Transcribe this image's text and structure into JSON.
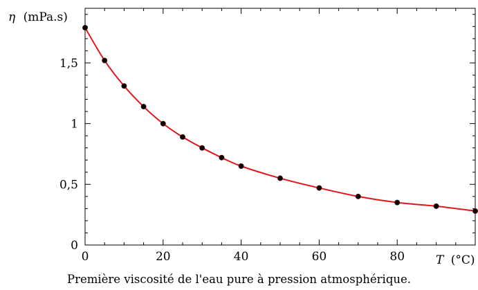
{
  "chart_data": {
    "type": "line",
    "title": "",
    "xlabel_symbol": "T",
    "xlabel_unit": "(°C)",
    "ylabel_symbol": "η",
    "ylabel_unit": "(mPa.s)",
    "xlim": [
      0,
      100
    ],
    "ylim": [
      0,
      1.95
    ],
    "x_ticks": [
      0,
      20,
      40,
      60,
      80
    ],
    "x_tick_labels": [
      "0",
      "20",
      "40",
      "60",
      "80"
    ],
    "y_ticks": [
      0,
      0.5,
      1,
      1.5
    ],
    "y_tick_labels": [
      "0",
      "0,5",
      "1",
      "1,5"
    ],
    "grid": false,
    "series": [
      {
        "x": [
          0,
          5,
          10,
          15,
          20,
          25,
          30,
          35,
          40,
          50,
          60,
          70,
          80,
          90,
          100
        ],
        "y": [
          1.79,
          1.52,
          1.31,
          1.14,
          1.0,
          0.89,
          0.8,
          0.72,
          0.65,
          0.55,
          0.47,
          0.4,
          0.35,
          0.32,
          0.28
        ],
        "line_color": "#e0161c",
        "marker_color": "#000000"
      }
    ]
  },
  "caption": "Première viscosité de l'eau pure à pression atmosphérique."
}
